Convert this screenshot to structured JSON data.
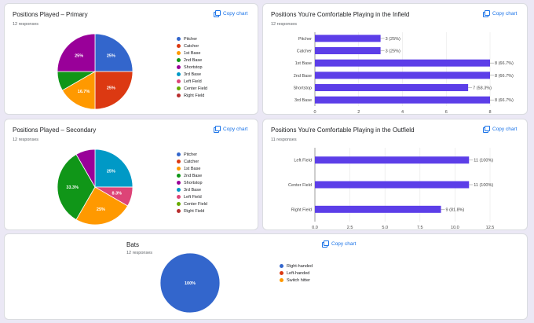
{
  "copy_label": "Copy chart",
  "chart_data": [
    {
      "id": "primary",
      "type": "pie",
      "title": "Positions Played – Primary",
      "responses": "12 responses",
      "legend": [
        {
          "label": "Pitcher",
          "color": "#3366cc"
        },
        {
          "label": "Catcher",
          "color": "#dc3912"
        },
        {
          "label": "1st Base",
          "color": "#ff9900"
        },
        {
          "label": "2nd Base",
          "color": "#109618"
        },
        {
          "label": "Shortstop",
          "color": "#990099"
        },
        {
          "label": "3rd Base",
          "color": "#0099c6"
        },
        {
          "label": "Left Field",
          "color": "#dd4477"
        },
        {
          "label": "Center Field",
          "color": "#66aa00"
        },
        {
          "label": "Right Field",
          "color": "#b82e2e"
        }
      ],
      "slices": [
        {
          "label": "Pitcher",
          "value": 25,
          "text": "25%",
          "color": "#3366cc"
        },
        {
          "label": "Catcher",
          "value": 25,
          "text": "25%",
          "color": "#dc3912"
        },
        {
          "label": "1st Base",
          "value": 16.7,
          "text": "16.7%",
          "color": "#ff9900"
        },
        {
          "label": "2nd Base",
          "value": 8.3,
          "text": "",
          "color": "#109618"
        },
        {
          "label": "Shortstop",
          "value": 25,
          "text": "25%",
          "color": "#990099"
        }
      ]
    },
    {
      "id": "infield",
      "type": "bar",
      "orientation": "horizontal",
      "title": "Positions You're Comfortable Playing in the Infield",
      "responses": "12 responses",
      "categories": [
        "Pitcher",
        "Catcher",
        "1st Base",
        "2nd Base",
        "Shortstop",
        "3rd Base"
      ],
      "values": [
        3,
        3,
        8,
        8,
        7,
        8
      ],
      "labels": [
        "3 (25%)",
        "3 (25%)",
        "8 (66.7%)",
        "8 (66.7%)",
        "7 (58.3%)",
        "8 (66.7%)"
      ],
      "xticks": [
        "0",
        "2",
        "4",
        "6",
        "8"
      ],
      "xlim": [
        0,
        8
      ],
      "color": "#5c3ee8"
    },
    {
      "id": "secondary",
      "type": "pie",
      "title": "Positions Played – Secondary",
      "responses": "12 responses",
      "legend": [
        {
          "label": "Pitcher",
          "color": "#3366cc"
        },
        {
          "label": "Catcher",
          "color": "#dc3912"
        },
        {
          "label": "1st Base",
          "color": "#ff9900"
        },
        {
          "label": "2nd Base",
          "color": "#109618"
        },
        {
          "label": "Shortstop",
          "color": "#990099"
        },
        {
          "label": "3rd Base",
          "color": "#0099c6"
        },
        {
          "label": "Left Field",
          "color": "#dd4477"
        },
        {
          "label": "Center Field",
          "color": "#66aa00"
        },
        {
          "label": "Right Field",
          "color": "#b82e2e"
        }
      ],
      "slices": [
        {
          "label": "3rd Base",
          "value": 25,
          "text": "25%",
          "color": "#0099c6"
        },
        {
          "label": "Left Field",
          "value": 8.3,
          "text": "8.3%",
          "color": "#dd4477"
        },
        {
          "label": "1st Base",
          "value": 25,
          "text": "25%",
          "color": "#ff9900"
        },
        {
          "label": "2nd Base",
          "value": 33.3,
          "text": "33.3%",
          "color": "#109618"
        },
        {
          "label": "Shortstop",
          "value": 8.3,
          "text": "",
          "color": "#990099"
        }
      ]
    },
    {
      "id": "outfield",
      "type": "bar",
      "orientation": "horizontal",
      "title": "Positions You're Comfortable Playing in the Outfield",
      "responses": "11 responses",
      "categories": [
        "Left Field",
        "Center Field",
        "Right Field"
      ],
      "values": [
        11,
        11,
        9
      ],
      "labels": [
        "11 (100%)",
        "11 (100%)",
        "9 (81.8%)"
      ],
      "xticks": [
        "0.0",
        "2.5",
        "5.0",
        "7.5",
        "10.0",
        "12.5"
      ],
      "xlim": [
        0,
        12.5
      ],
      "color": "#5c3ee8"
    },
    {
      "id": "bats",
      "type": "pie",
      "title": "Bats",
      "responses": "12 responses",
      "legend": [
        {
          "label": "Right-handed",
          "color": "#3366cc"
        },
        {
          "label": "Left-handed",
          "color": "#dc3912"
        },
        {
          "label": "Switch hitter",
          "color": "#ff9900"
        }
      ],
      "slices": [
        {
          "label": "Right-handed",
          "value": 100,
          "text": "100%",
          "color": "#3366cc"
        }
      ]
    }
  ]
}
